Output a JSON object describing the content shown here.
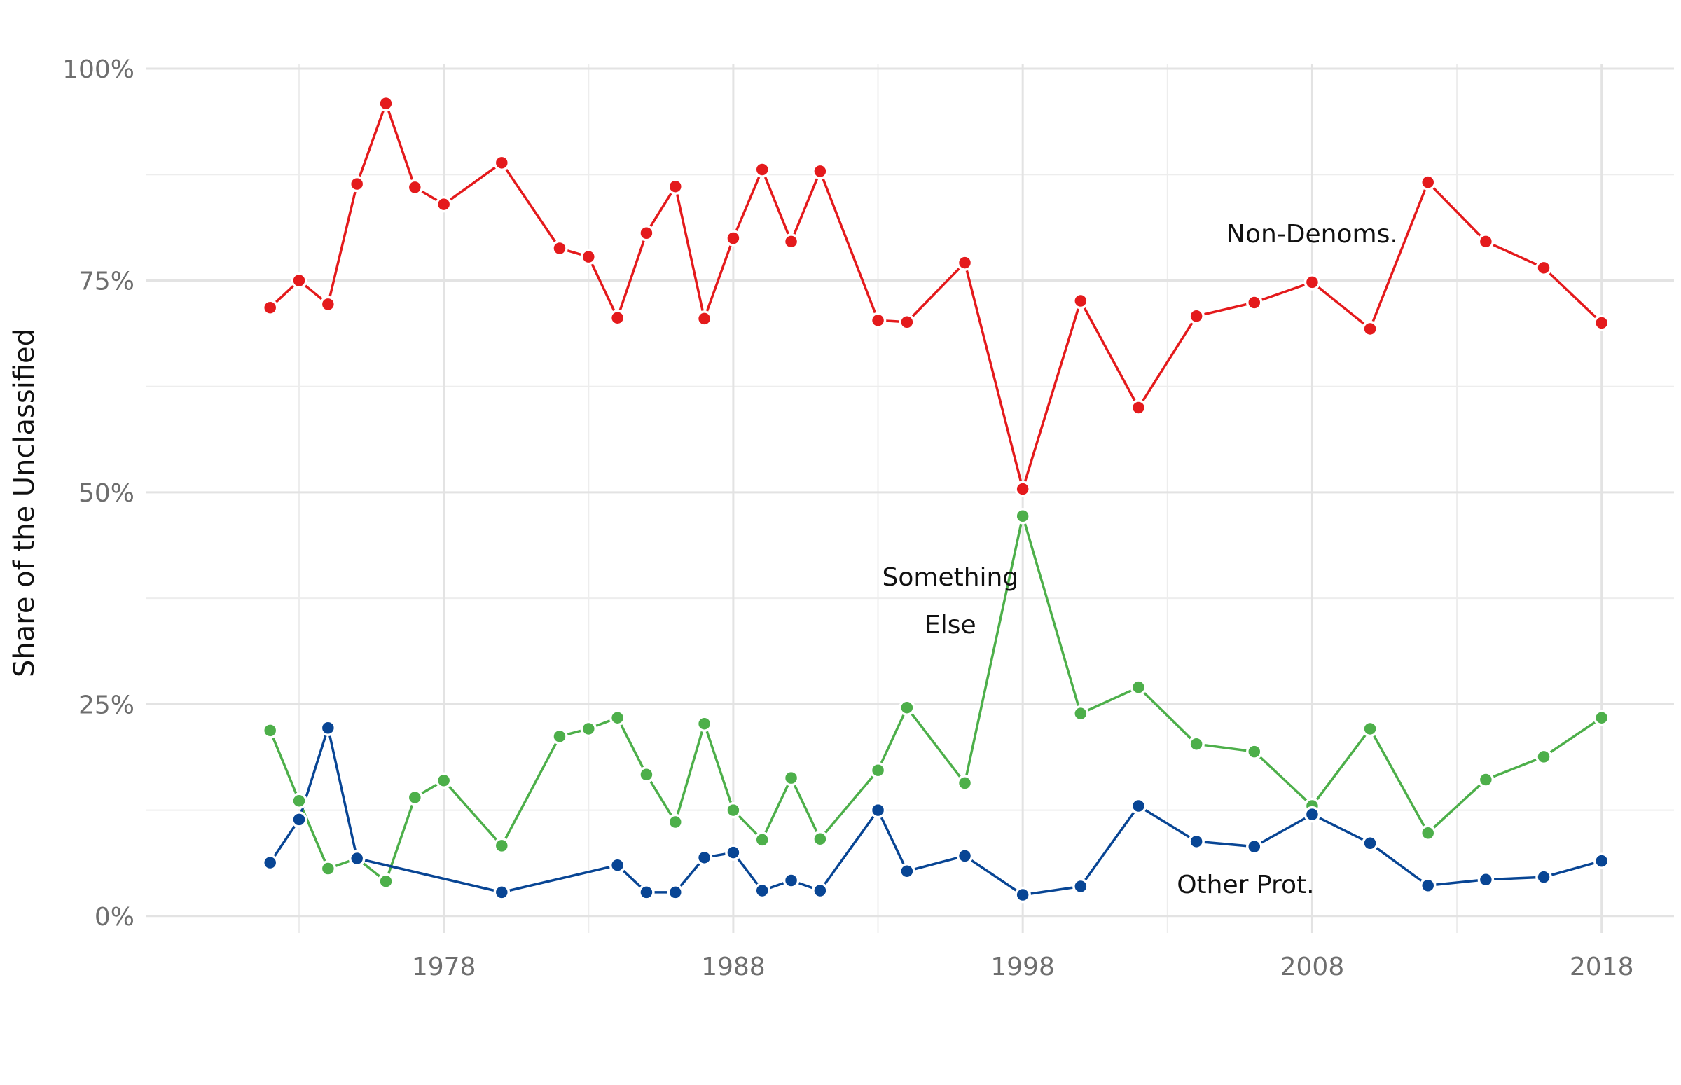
{
  "chart_data": {
    "type": "line",
    "ylabel": "Share of the Unclassified",
    "xlabel": "",
    "xlim": [
      1967.7,
      2020.5
    ],
    "ylim": [
      -2,
      100.5
    ],
    "x_major_ticks": [
      1978,
      1988,
      1998,
      2008,
      2018
    ],
    "x_minor_ticks": [
      1973,
      1983,
      1993,
      2003,
      2013
    ],
    "y_major_ticks": [
      0,
      25,
      50,
      75,
      100
    ],
    "y_minor_ticks": [
      12.5,
      37.5,
      62.5,
      87.5
    ],
    "y_tick_labels": [
      "0%",
      "25%",
      "50%",
      "75%",
      "100%"
    ],
    "x_tick_labels": [
      "1978",
      "1988",
      "1998",
      "2008",
      "2018"
    ],
    "grid": true,
    "legend": "none",
    "series": [
      {
        "name": "Non-Denoms.",
        "color": "#e41a1c",
        "x": [
          1972,
          1973,
          1974,
          1975,
          1976,
          1977,
          1978,
          1980,
          1982,
          1983,
          1984,
          1985,
          1986,
          1987,
          1988,
          1989,
          1990,
          1991,
          1993,
          1994,
          1996,
          1998,
          2000,
          2002,
          2004,
          2006,
          2008,
          2010,
          2012,
          2014,
          2016,
          2018
        ],
        "values": [
          71.8,
          75.0,
          72.2,
          86.4,
          95.9,
          86.0,
          84.0,
          88.9,
          78.8,
          77.8,
          70.6,
          80.6,
          86.1,
          70.5,
          80.0,
          88.1,
          79.6,
          87.9,
          70.3,
          70.1,
          77.1,
          50.4,
          72.6,
          60.0,
          70.8,
          72.4,
          74.8,
          69.3,
          86.6,
          79.6,
          76.5,
          70.0
        ]
      },
      {
        "name": "Something Else",
        "color": "#4daf4a",
        "x": [
          1972,
          1973,
          1974,
          1975,
          1976,
          1977,
          1978,
          1980,
          1982,
          1983,
          1984,
          1985,
          1986,
          1987,
          1988,
          1989,
          1990,
          1991,
          1993,
          1994,
          1996,
          1998,
          2000,
          2002,
          2004,
          2006,
          2008,
          2010,
          2012,
          2014,
          2016,
          2018
        ],
        "values": [
          21.9,
          13.6,
          5.6,
          6.8,
          4.1,
          14.0,
          16.0,
          8.3,
          21.2,
          22.1,
          23.4,
          16.7,
          11.1,
          22.7,
          12.5,
          9.0,
          16.3,
          9.1,
          17.2,
          24.6,
          15.7,
          47.2,
          23.9,
          27.0,
          20.3,
          19.4,
          13.0,
          22.1,
          9.8,
          16.1,
          18.8,
          23.4
        ]
      },
      {
        "name": "Other Prot.",
        "color": "#084594",
        "x": [
          1972,
          1973,
          1974,
          1975,
          1980,
          1984,
          1985,
          1986,
          1987,
          1988,
          1989,
          1990,
          1991,
          1993,
          1994,
          1996,
          1998,
          2000,
          2002,
          2004,
          2006,
          2008,
          2010,
          2012,
          2014,
          2016,
          2018
        ],
        "values": [
          6.3,
          11.4,
          22.2,
          6.8,
          2.8,
          6.0,
          2.8,
          2.8,
          6.9,
          7.5,
          3.0,
          4.2,
          3.0,
          12.5,
          5.3,
          7.1,
          2.5,
          3.5,
          13.0,
          8.8,
          8.2,
          12.0,
          8.6,
          3.6,
          4.3,
          4.6,
          6.5
        ]
      }
    ],
    "annotations": [
      {
        "lines": [
          "Non-Denoms."
        ],
        "x": 2008,
        "y": 80.5,
        "color": "#111111"
      },
      {
        "lines": [
          "Something",
          "Else"
        ],
        "x": 1995.5,
        "y": 40,
        "color": "#111111"
      },
      {
        "lines": [
          "Other Prot."
        ],
        "x": 2005.7,
        "y": 3.7,
        "color": "#111111"
      }
    ]
  }
}
